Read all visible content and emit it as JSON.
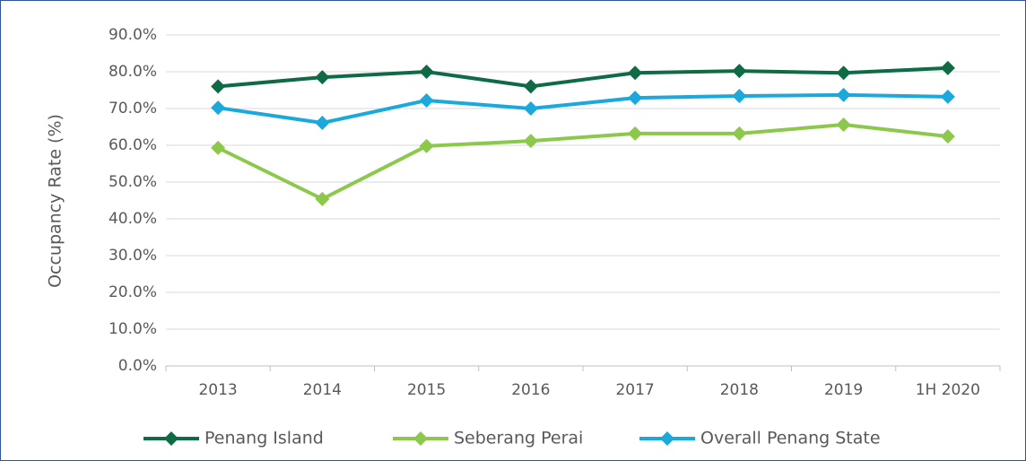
{
  "chart_data": {
    "type": "line",
    "y_axis_label": "Occupancy Rate (%)",
    "categories": [
      "2013",
      "2014",
      "2015",
      "2016",
      "2017",
      "2018",
      "2019",
      "1H 2020"
    ],
    "series": [
      {
        "name": "Penang Island",
        "color": "#0e6b45",
        "values": [
          76.0,
          78.5,
          80.0,
          76.0,
          79.7,
          80.2,
          79.7,
          81.0
        ]
      },
      {
        "name": "Seberang Perai",
        "color": "#8cc84b",
        "values": [
          59.3,
          45.4,
          59.8,
          61.2,
          63.2,
          63.2,
          65.6,
          62.4
        ]
      },
      {
        "name": "Overall Penang State",
        "color": "#1ba8dc",
        "values": [
          70.2,
          66.1,
          72.2,
          70.0,
          72.9,
          73.4,
          73.7,
          73.2
        ]
      }
    ],
    "ylim": [
      0,
      90
    ],
    "yticks": [
      {
        "value": 0,
        "label": "0.0%"
      },
      {
        "value": 10,
        "label": "10.0%"
      },
      {
        "value": 20,
        "label": "20.0%"
      },
      {
        "value": 30,
        "label": "30.0%"
      },
      {
        "value": 40,
        "label": "40.0%"
      },
      {
        "value": 50,
        "label": "50.0%"
      },
      {
        "value": 60,
        "label": "60.0%"
      },
      {
        "value": 70,
        "label": "70.0%"
      },
      {
        "value": 80,
        "label": "80.0%"
      },
      {
        "value": 90,
        "label": "90.0%"
      }
    ],
    "grid": true,
    "legend": "bottom"
  }
}
